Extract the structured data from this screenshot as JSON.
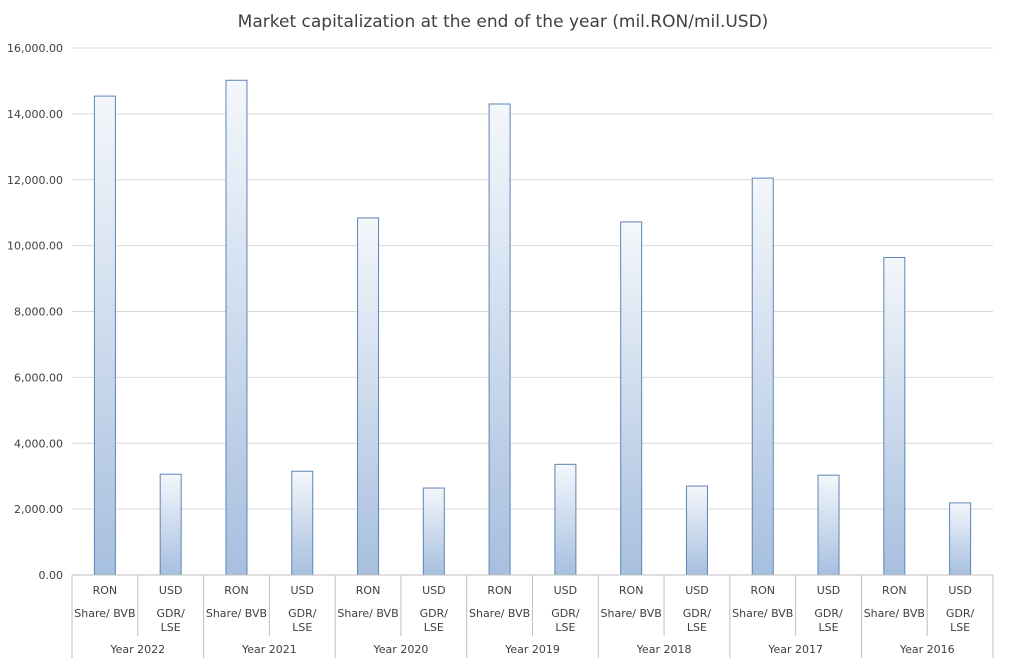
{
  "chart_data": {
    "type": "bar",
    "title": "Market capitalization at the end of the year (mil.RON/mil.USD)",
    "xlabel": "",
    "ylabel": "",
    "ylim": [
      0,
      16000
    ],
    "yticks": [
      "0.00",
      "2,000.00",
      "4,000.00",
      "6,000.00",
      "8,000.00",
      "10,000.00",
      "12,000.00",
      "14,000.00",
      "16,000.00"
    ],
    "grid": true,
    "legend": "none",
    "colors": {
      "bar_top": "#f4f7fb",
      "bar_bottom": "#a7bfdf",
      "bar_stroke": "#5d85b6",
      "grid": "#d9d9d9",
      "axis": "#bfbfbf"
    },
    "categories": [
      {
        "year": "Year 2022",
        "bars": [
          {
            "currency": "RON",
            "market": "Share/ BVB",
            "value": 14540
          },
          {
            "currency": "USD",
            "market": "GDR/ LSE",
            "value": 3060
          }
        ]
      },
      {
        "year": "Year 2021",
        "bars": [
          {
            "currency": "RON",
            "market": "Share/ BVB",
            "value": 15020
          },
          {
            "currency": "USD",
            "market": "GDR/ LSE",
            "value": 3150
          }
        ]
      },
      {
        "year": "Year 2020",
        "bars": [
          {
            "currency": "RON",
            "market": "Share/ BVB",
            "value": 10840
          },
          {
            "currency": "USD",
            "market": "GDR/ LSE",
            "value": 2640
          }
        ]
      },
      {
        "year": "Year 2019",
        "bars": [
          {
            "currency": "RON",
            "market": "Share/ BVB",
            "value": 14300
          },
          {
            "currency": "USD",
            "market": "GDR/ LSE",
            "value": 3360
          }
        ]
      },
      {
        "year": "Year 2018",
        "bars": [
          {
            "currency": "RON",
            "market": "Share/ BVB",
            "value": 10720
          },
          {
            "currency": "USD",
            "market": "GDR/ LSE",
            "value": 2700
          }
        ]
      },
      {
        "year": "Year 2017",
        "bars": [
          {
            "currency": "RON",
            "market": "Share/ BVB",
            "value": 12050
          },
          {
            "currency": "USD",
            "market": "GDR/ LSE",
            "value": 3030
          }
        ]
      },
      {
        "year": "Year 2016",
        "bars": [
          {
            "currency": "RON",
            "market": "Share/ BVB",
            "value": 9640
          },
          {
            "currency": "USD",
            "market": "GDR/ LSE",
            "value": 2190
          }
        ]
      }
    ]
  }
}
